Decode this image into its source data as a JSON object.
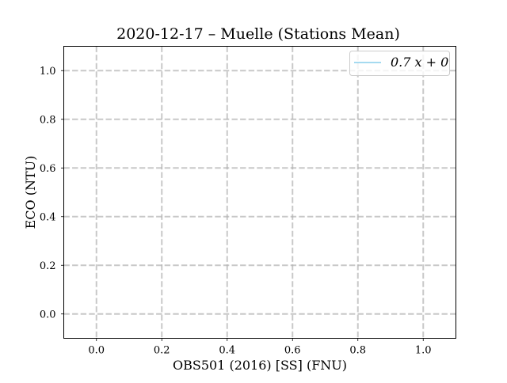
{
  "chart_data": {
    "type": "line",
    "title": "2020-12-17 – Muelle (Stations Mean)",
    "xlabel": "OBS501 (2016) [SS] (FNU)",
    "ylabel": "ECO (NTU)",
    "xlim": [
      -0.1,
      1.1
    ],
    "ylim": [
      -0.1,
      1.1
    ],
    "xticks": [
      0.0,
      0.2,
      0.4,
      0.6,
      0.8,
      1.0
    ],
    "yticks": [
      0.0,
      0.2,
      0.4,
      0.6,
      0.8,
      1.0
    ],
    "xtick_labels": [
      "0.0",
      "0.2",
      "0.4",
      "0.6",
      "0.8",
      "1.0"
    ],
    "ytick_labels": [
      "0.0",
      "0.2",
      "0.4",
      "0.6",
      "0.8",
      "1.0"
    ],
    "grid": true,
    "grid_style": "dashed",
    "legend_position": "top-right",
    "series": [
      {
        "name": "0.7 x + 0",
        "color": "#87ceeb",
        "x": [],
        "y": []
      }
    ]
  }
}
